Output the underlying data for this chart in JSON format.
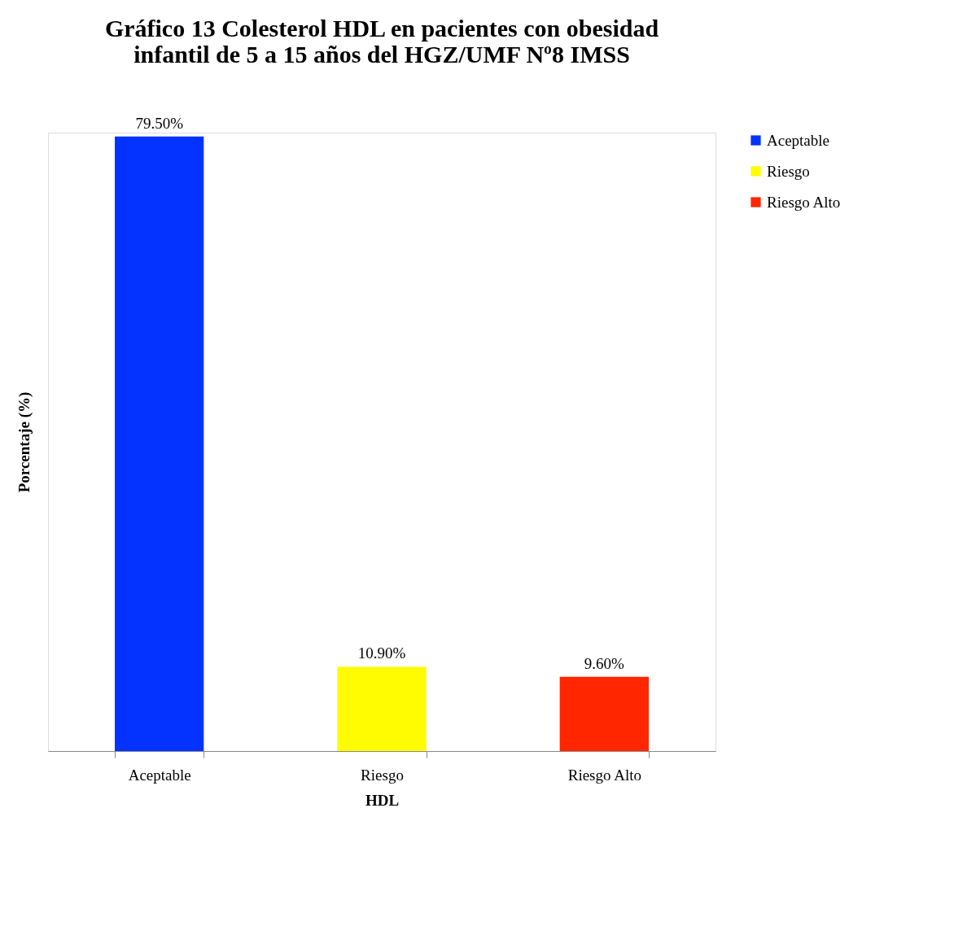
{
  "chart_data": {
    "type": "bar",
    "title": "Gráfico 13 Colesterol HDL en pacientes con obesidad\ninfantil de 5 a 15 años del HGZ/UMF Nº8 IMSS",
    "xlabel": "HDL",
    "ylabel": "Porcentaje (%)",
    "categories": [
      "Aceptable",
      "Riesgo",
      "Riesgo Alto"
    ],
    "series": [
      {
        "name": "Aceptable",
        "color": "#0433ff",
        "values": [
          79.5,
          null,
          null
        ],
        "value_labels": [
          "79.50%",
          null,
          null
        ]
      },
      {
        "name": "Riesgo",
        "color": "#fffb00",
        "values": [
          null,
          10.9,
          null
        ],
        "value_labels": [
          null,
          "10.90%",
          null
        ]
      },
      {
        "name": "Riesgo Alto",
        "color": "#ff2600",
        "values": [
          null,
          null,
          9.6
        ],
        "value_labels": [
          null,
          null,
          "9.60%"
        ]
      }
    ],
    "legend": "right",
    "grid": false
  }
}
